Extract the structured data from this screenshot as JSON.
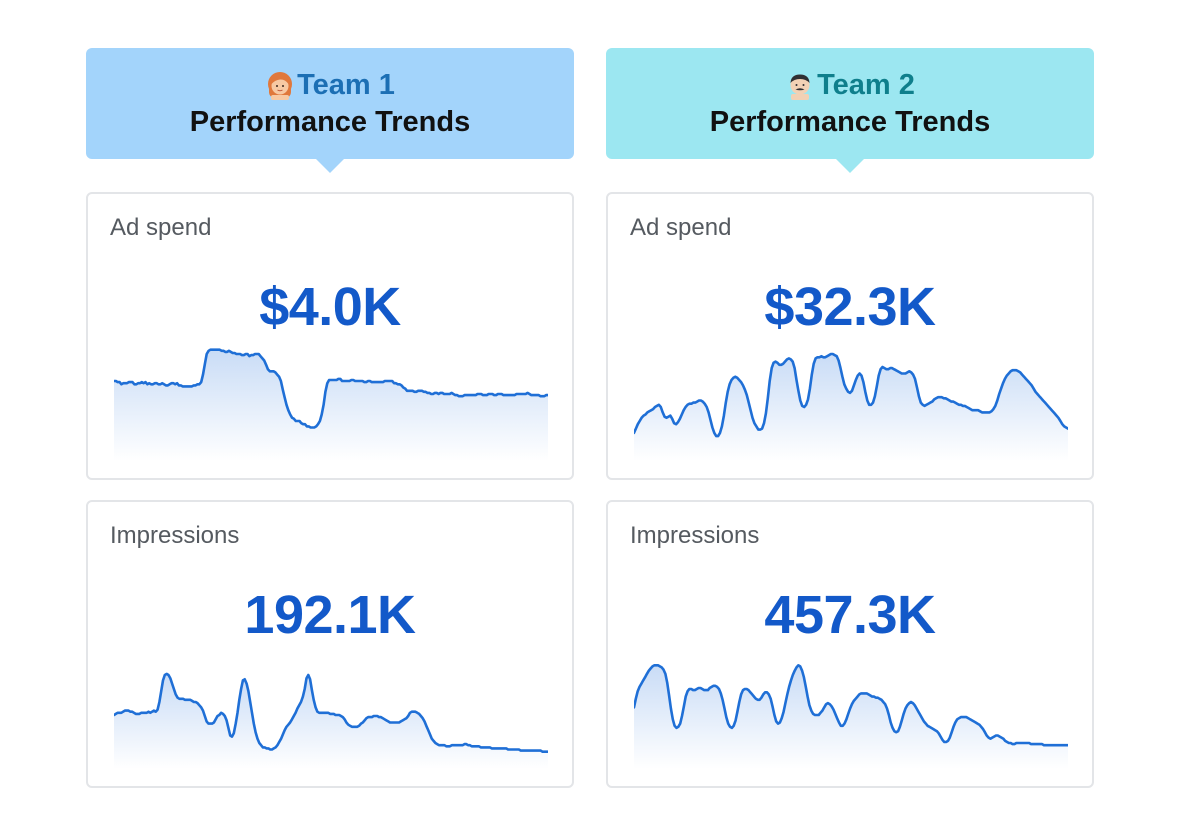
{
  "teams": [
    {
      "name": "Team 1",
      "subtitle": "Performance Trends",
      "avatar_icon": "woman-red-hair-avatar-icon",
      "metrics": [
        {
          "label": "Ad spend",
          "value": "$4.0K",
          "trend": [
            62,
            62,
            61,
            61,
            59,
            60,
            60,
            60,
            61,
            61,
            61,
            59,
            59,
            60,
            60,
            61,
            60,
            61,
            59,
            60,
            59,
            59,
            60,
            60,
            59,
            59,
            60,
            59,
            58,
            58,
            59,
            60,
            60,
            59,
            60,
            58,
            58,
            57,
            57,
            57,
            57,
            57,
            57,
            58,
            58,
            59,
            59,
            61,
            68,
            78,
            87,
            90,
            91,
            91,
            91,
            91,
            91,
            91,
            90,
            90,
            89,
            89,
            90,
            89,
            88,
            88,
            87,
            87,
            87,
            86,
            86,
            87,
            87,
            85,
            86,
            86,
            87,
            87,
            87,
            85,
            83,
            81,
            77,
            73,
            71,
            71,
            71,
            70,
            68,
            66,
            62,
            54,
            47,
            40,
            35,
            31,
            28,
            27,
            25,
            25,
            25,
            23,
            22,
            22,
            20,
            20,
            19,
            19,
            19,
            20,
            22,
            25,
            31,
            40,
            52,
            60,
            63,
            63,
            63,
            63,
            63,
            64,
            64,
            62,
            62,
            62,
            62,
            62,
            63,
            63,
            62,
            62,
            62,
            62,
            62,
            61,
            61,
            62,
            62,
            61,
            61,
            61,
            61,
            61,
            61,
            61,
            62,
            62,
            62,
            62,
            62,
            60,
            60,
            59,
            59,
            58,
            56,
            55,
            53,
            53,
            53,
            53,
            52,
            52,
            53,
            53,
            53,
            52,
            52,
            51,
            51,
            50,
            50,
            51,
            51,
            50,
            51,
            51,
            50,
            50,
            50,
            50,
            51,
            50,
            49,
            49,
            48,
            48,
            48,
            49,
            49,
            49,
            49,
            49,
            49,
            49,
            50,
            50,
            50,
            49,
            49,
            49,
            50,
            50,
            50,
            49,
            49,
            50,
            50,
            50,
            49,
            49,
            49,
            49,
            49,
            49,
            49,
            50,
            50,
            50,
            50,
            50,
            50,
            51,
            50,
            49,
            49,
            49,
            49,
            49,
            48,
            48,
            48,
            49,
            49
          ],
          "ylim": [
            0,
            100
          ]
        },
        {
          "label": "Impressions",
          "value": "192.1K",
          "trend": [
            38,
            39,
            40,
            40,
            40,
            41,
            42,
            42,
            42,
            41,
            41,
            40,
            39,
            39,
            39,
            40,
            40,
            40,
            40,
            41,
            40,
            41,
            42,
            41,
            43,
            50,
            60,
            70,
            75,
            76,
            75,
            72,
            67,
            62,
            57,
            54,
            53,
            53,
            53,
            52,
            52,
            52,
            52,
            51,
            50,
            50,
            49,
            47,
            45,
            42,
            37,
            32,
            30,
            30,
            30,
            31,
            34,
            37,
            38,
            40,
            39,
            37,
            33,
            26,
            19,
            18,
            21,
            30,
            40,
            52,
            62,
            70,
            71,
            67,
            60,
            50,
            40,
            30,
            22,
            16,
            12,
            10,
            8,
            8,
            7,
            7,
            6,
            6,
            7,
            8,
            10,
            13,
            16,
            20,
            24,
            27,
            29,
            31,
            34,
            37,
            40,
            44,
            47,
            50,
            55,
            62,
            72,
            75,
            71,
            61,
            52,
            45,
            41,
            40,
            40,
            40,
            40,
            40,
            40,
            39,
            39,
            39,
            38,
            38,
            38,
            37,
            36,
            34,
            31,
            29,
            28,
            27,
            27,
            27,
            27,
            28,
            30,
            31,
            33,
            35,
            36,
            36,
            36,
            37,
            37,
            37,
            36,
            36,
            35,
            34,
            33,
            32,
            31,
            31,
            31,
            31,
            31,
            31,
            32,
            33,
            34,
            35,
            37,
            40,
            41,
            41,
            41,
            40,
            39,
            37,
            35,
            32,
            28,
            24,
            20,
            16,
            14,
            12,
            11,
            10,
            10,
            10,
            10,
            9,
            9,
            9,
            10,
            10,
            10,
            10,
            10,
            10,
            10,
            11,
            11,
            10,
            10,
            9,
            9,
            9,
            9,
            9,
            8,
            8,
            8,
            8,
            8,
            8,
            7,
            7,
            7,
            7,
            7,
            7,
            7,
            7,
            7,
            6,
            6,
            6,
            6,
            6,
            6,
            6,
            5,
            5,
            5,
            5,
            5,
            5,
            5,
            5,
            5,
            5,
            5,
            5,
            4,
            4,
            4,
            4
          ],
          "ylim": [
            0,
            100
          ]
        }
      ]
    },
    {
      "name": "Team 2",
      "subtitle": "Performance Trends",
      "avatar_icon": "man-mustache-avatar-icon",
      "metrics": [
        {
          "label": "Ad spend",
          "value": "$32.3K",
          "trend": [
            14,
            18,
            22,
            25,
            28,
            30,
            31,
            33,
            34,
            35,
            36,
            38,
            39,
            40,
            38,
            33,
            29,
            28,
            29,
            30,
            27,
            23,
            22,
            24,
            27,
            31,
            35,
            38,
            40,
            41,
            41,
            42,
            42,
            43,
            44,
            44,
            43,
            41,
            38,
            33,
            26,
            19,
            14,
            11,
            11,
            14,
            20,
            30,
            42,
            52,
            59,
            63,
            65,
            66,
            65,
            63,
            61,
            58,
            54,
            49,
            42,
            35,
            28,
            23,
            20,
            17,
            17,
            18,
            23,
            32,
            46,
            62,
            74,
            79,
            80,
            79,
            77,
            77,
            78,
            80,
            82,
            83,
            82,
            80,
            74,
            63,
            53,
            44,
            39,
            38,
            40,
            45,
            55,
            68,
            78,
            83,
            84,
            84,
            85,
            84,
            84,
            85,
            86,
            87,
            87,
            86,
            85,
            81,
            74,
            66,
            59,
            55,
            52,
            51,
            53,
            58,
            63,
            67,
            69,
            67,
            61,
            52,
            44,
            40,
            40,
            42,
            48,
            57,
            67,
            73,
            75,
            74,
            73,
            73,
            74,
            74,
            73,
            72,
            71,
            70,
            69,
            69,
            69,
            70,
            71,
            70,
            68,
            64,
            56,
            48,
            42,
            40,
            39,
            40,
            41,
            42,
            43,
            45,
            46,
            47,
            47,
            47,
            46,
            46,
            45,
            44,
            43,
            43,
            42,
            41,
            40,
            40,
            39,
            39,
            38,
            37,
            36,
            35,
            35,
            35,
            35,
            34,
            33,
            33,
            33,
            33,
            33,
            34,
            36,
            39,
            44,
            50,
            55,
            60,
            64,
            67,
            69,
            71,
            72,
            72,
            72,
            71,
            70,
            68,
            66,
            64,
            62,
            60,
            58,
            55,
            52,
            50,
            48,
            46,
            44,
            42,
            40,
            38,
            36,
            34,
            32,
            30,
            28,
            25,
            22,
            20,
            19,
            18
          ],
          "ylim": [
            0,
            100
          ]
        },
        {
          "label": "Impressions",
          "value": "457.3K",
          "trend": [
            45,
            53,
            60,
            64,
            67,
            70,
            73,
            76,
            79,
            81,
            83,
            84,
            84,
            84,
            83,
            82,
            80,
            76,
            68,
            56,
            44,
            34,
            28,
            26,
            27,
            30,
            37,
            46,
            55,
            60,
            62,
            62,
            61,
            61,
            62,
            63,
            63,
            62,
            61,
            61,
            61,
            63,
            64,
            65,
            65,
            64,
            62,
            58,
            52,
            44,
            36,
            30,
            27,
            26,
            28,
            33,
            41,
            50,
            57,
            61,
            62,
            62,
            61,
            59,
            57,
            55,
            53,
            52,
            52,
            54,
            57,
            59,
            59,
            57,
            53,
            46,
            38,
            32,
            30,
            31,
            35,
            41,
            49,
            57,
            64,
            70,
            75,
            79,
            82,
            84,
            83,
            79,
            73,
            64,
            55,
            47,
            42,
            39,
            38,
            38,
            38,
            40,
            42,
            45,
            48,
            49,
            48,
            46,
            43,
            39,
            35,
            31,
            28,
            28,
            30,
            34,
            39,
            44,
            48,
            51,
            53,
            55,
            57,
            58,
            58,
            58,
            58,
            57,
            56,
            55,
            55,
            54,
            54,
            53,
            52,
            50,
            48,
            44,
            38,
            31,
            26,
            23,
            22,
            23,
            27,
            33,
            39,
            44,
            47,
            49,
            50,
            49,
            47,
            44,
            41,
            38,
            35,
            32,
            30,
            28,
            27,
            26,
            25,
            24,
            23,
            21,
            18,
            15,
            13,
            13,
            14,
            17,
            22,
            27,
            31,
            34,
            35,
            36,
            36,
            36,
            36,
            35,
            34,
            33,
            32,
            31,
            30,
            29,
            27,
            25,
            22,
            19,
            17,
            16,
            17,
            18,
            19,
            19,
            18,
            17,
            16,
            14,
            13,
            12,
            12,
            11,
            11,
            12,
            12,
            12,
            12,
            12,
            12,
            12,
            12,
            11,
            11,
            11,
            11,
            11,
            11,
            11,
            10,
            10,
            10,
            10,
            10,
            10,
            10,
            10,
            10,
            10,
            10,
            10,
            10,
            10
          ],
          "ylim": [
            0,
            100
          ]
        }
      ]
    }
  ],
  "colors": {
    "team1_header": "#a3d4fb",
    "team2_header": "#9ce7f1",
    "value_text": "#1359c9",
    "sparkline": "#1f6fd6"
  }
}
